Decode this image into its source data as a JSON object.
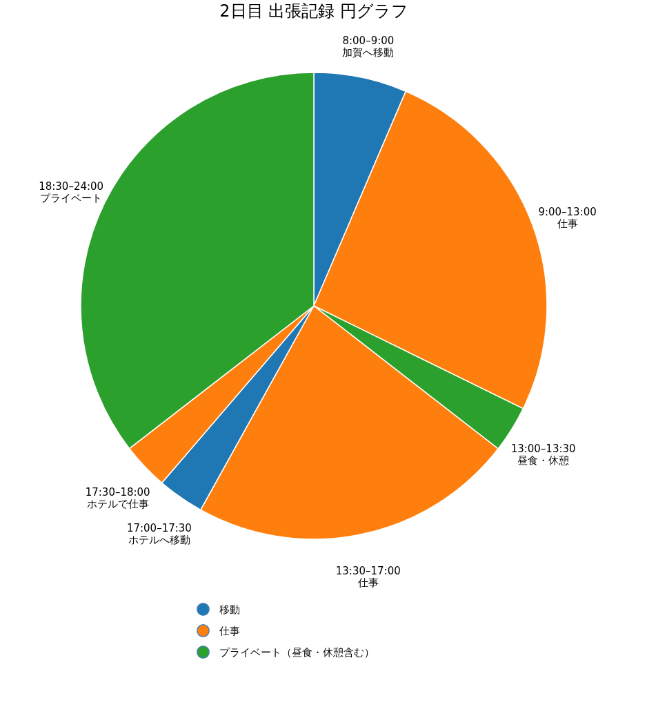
{
  "chart_data": {
    "type": "pie",
    "title": "2日目 出張記録 円グラフ",
    "categories": [
      "8:00–9:00\n加賀へ移動",
      "9:00–13:00\n仕事",
      "13:00–13:30\n昼食・休憩",
      "13:30–17:00\n仕事",
      "17:00–17:30\nホテルへ移動",
      "17:30–18:00\nホテルで仕事",
      "18:30–24:00\nプライベート"
    ],
    "values": [
      6.45,
      25.81,
      3.23,
      22.58,
      3.23,
      3.23,
      35.47
    ],
    "colors": [
      "#1f77b4",
      "#ff7f0e",
      "#2ca02c",
      "#ff7f0e",
      "#1f77b4",
      "#ff7f0e",
      "#2ca02c"
    ],
    "annotations": [
      "移動",
      "仕事",
      "プライベート（昼食・休憩含む）"
    ]
  }
}
